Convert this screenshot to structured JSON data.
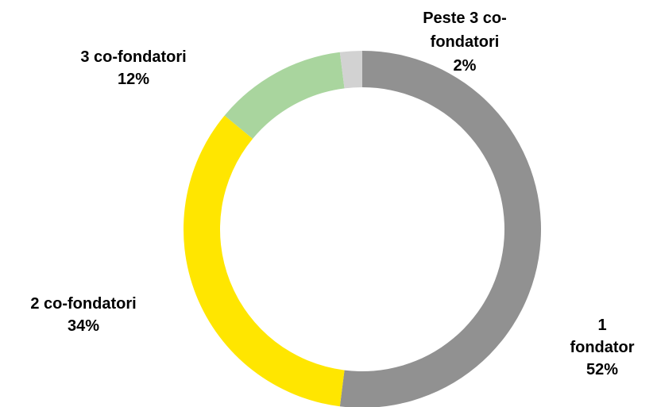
{
  "chart_data": {
    "type": "donut",
    "categories": [
      "1 fondator",
      "2 co-fondatori",
      "3 co-fondatori",
      "Peste 3 co-fondatori"
    ],
    "values": [
      52,
      34,
      12,
      2
    ],
    "value_labels": [
      "52%",
      "34%",
      "12%",
      "2%"
    ],
    "colors": [
      "#919191",
      "#ffe600",
      "#a9d59e",
      "#d2d2d2"
    ]
  }
}
